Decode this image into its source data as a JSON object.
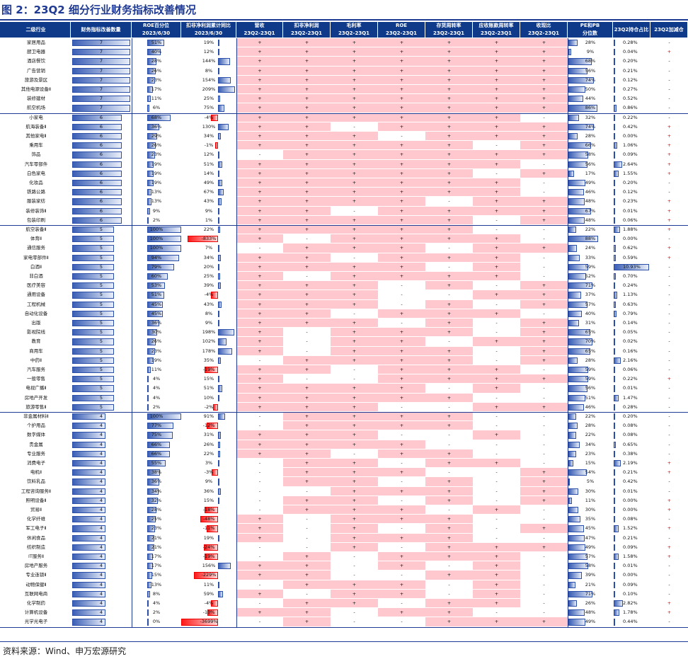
{
  "title": "图 2：23Q2 细分行业财务指标改善情况",
  "footer": "资料来源：Wind、申万宏源研究",
  "colors": {
    "header_bg": "#0f3a8a",
    "pink": "#ffc7ce",
    "bar_blue": "#3b5fb5",
    "bar_red": "#ff1a1a"
  },
  "headers": [
    {
      "line1": "二级行业",
      "line2": ""
    },
    {
      "line1": "财务指标改善数量",
      "line2": ""
    },
    {
      "line1": "ROE百分位",
      "line2": "2023/6/30"
    },
    {
      "line1": "扣非净利润累计同比",
      "line2": "2023/6/30"
    },
    {
      "line1": "营收",
      "line2": "23Q2-23Q1"
    },
    {
      "line1": "扣非净利润",
      "line2": "23Q2-23Q1"
    },
    {
      "line1": "毛利率",
      "line2": "23Q2-23Q1"
    },
    {
      "line1": "ROE",
      "line2": "23Q2-23Q1"
    },
    {
      "line1": "存货周转率",
      "line2": "23Q2-23Q1"
    },
    {
      "line1": "应收账款周转率",
      "line2": "23Q2-23Q1"
    },
    {
      "line1": "收现比",
      "line2": "23Q2-23Q1"
    },
    {
      "line1": "PE和PB",
      "line2": "分位数"
    },
    {
      "line1": "23Q2持仓占比",
      "line2": ""
    },
    {
      "line1": "23Q2加减仓",
      "line2": ""
    }
  ],
  "rows": [
    {
      "name": "家居用品",
      "n": 7,
      "roe": "51%",
      "roe_v": 0.51,
      "profit": "19%",
      "profit_v": 19,
      "ind": "+++++++",
      "pe": "28%",
      "pe_v": 0.28,
      "hold": "0.28%",
      "hold_v": 0.28,
      "chg": "-"
    },
    {
      "name": "厨卫电器",
      "n": 7,
      "roe": "40%",
      "roe_v": 0.4,
      "profit": "12%",
      "profit_v": 12,
      "ind": "+++++++",
      "pe": "9%",
      "pe_v": 0.09,
      "hold": "0.04%",
      "hold_v": 0.04,
      "chg": "+"
    },
    {
      "name": "酒店餐饮",
      "n": 7,
      "roe": "28%",
      "roe_v": 0.28,
      "profit": "144%",
      "profit_v": 144,
      "ind": "+++++++",
      "pe": "68%",
      "pe_v": 0.68,
      "hold": "0.20%",
      "hold_v": 0.2,
      "chg": "-"
    },
    {
      "name": "广告营销",
      "n": 7,
      "roe": "26%",
      "roe_v": 0.26,
      "profit": "8%",
      "profit_v": 8,
      "ind": "+++++++",
      "pe": "56%",
      "pe_v": 0.56,
      "hold": "0.21%",
      "hold_v": 0.21,
      "chg": "-"
    },
    {
      "name": "旅游及景区",
      "n": 7,
      "roe": "23%",
      "roe_v": 0.23,
      "profit": "154%",
      "profit_v": 154,
      "ind": "+++++++",
      "pe": "74%",
      "pe_v": 0.74,
      "hold": "0.12%",
      "hold_v": 0.12,
      "chg": "-"
    },
    {
      "name": "其他电源设备Ⅱ",
      "n": 7,
      "roe": "17%",
      "roe_v": 0.17,
      "profit": "209%",
      "profit_v": 209,
      "ind": "+++++++",
      "pe": "50%",
      "pe_v": 0.5,
      "hold": "0.27%",
      "hold_v": 0.27,
      "chg": "-"
    },
    {
      "name": "装修建材",
      "n": 7,
      "roe": "11%",
      "roe_v": 0.11,
      "profit": "25%",
      "profit_v": 25,
      "ind": "+++++++",
      "pe": "44%",
      "pe_v": 0.44,
      "hold": "0.52%",
      "hold_v": 0.52,
      "chg": "-"
    },
    {
      "name": "航空机场",
      "n": 7,
      "roe": "6%",
      "roe_v": 0.06,
      "profit": "75%",
      "profit_v": 75,
      "ind": "+++++++",
      "pe": "86%",
      "pe_v": 0.86,
      "hold": "0.86%",
      "hold_v": 0.86,
      "chg": "-"
    },
    {
      "name": "小家电",
      "n": 6,
      "roe": "68%",
      "roe_v": 0.68,
      "profit": "-4%",
      "profit_v": -4,
      "ind": "++++++-",
      "pe": "32%",
      "pe_v": 0.32,
      "hold": "0.22%",
      "hold_v": 0.22,
      "chg": "-"
    },
    {
      "name": "航海装备Ⅱ",
      "n": 6,
      "roe": "36%",
      "roe_v": 0.36,
      "profit": "130%",
      "profit_v": 130,
      "ind": "++-++++",
      "pe": "74%",
      "pe_v": 0.74,
      "hold": "0.42%",
      "hold_v": 0.42,
      "chg": "+"
    },
    {
      "name": "其他家电Ⅱ",
      "n": 6,
      "roe": "29%",
      "roe_v": 0.29,
      "profit": "34%",
      "profit_v": 34,
      "ind": "+++-+++",
      "pe": "28%",
      "pe_v": 0.28,
      "hold": "0.00%",
      "hold_v": 0.0,
      "chg": "+"
    },
    {
      "name": "乘用车",
      "n": 6,
      "roe": "26%",
      "roe_v": 0.26,
      "profit": "-1%",
      "profit_v": -1,
      "ind": "+++++-+",
      "pe": "66%",
      "pe_v": 0.66,
      "hold": "1.06%",
      "hold_v": 1.06,
      "chg": "+"
    },
    {
      "name": "饰品",
      "n": 6,
      "roe": "23%",
      "roe_v": 0.23,
      "profit": "12%",
      "profit_v": 12,
      "ind": "-++++++",
      "pe": "58%",
      "pe_v": 0.58,
      "hold": "0.09%",
      "hold_v": 0.09,
      "chg": "+"
    },
    {
      "name": "汽车零部件",
      "n": 6,
      "roe": "19%",
      "roe_v": 0.19,
      "profit": "51%",
      "profit_v": 51,
      "ind": "++++++-",
      "pe": "56%",
      "pe_v": 0.56,
      "hold": "2.64%",
      "hold_v": 2.64,
      "chg": "+"
    },
    {
      "name": "白色家电",
      "n": 6,
      "roe": "19%",
      "roe_v": 0.19,
      "profit": "14%",
      "profit_v": 14,
      "ind": "+++++-+",
      "pe": "17%",
      "pe_v": 0.17,
      "hold": "1.55%",
      "hold_v": 1.55,
      "chg": "+"
    },
    {
      "name": "化妆品",
      "n": 6,
      "roe": "19%",
      "roe_v": 0.19,
      "profit": "49%",
      "profit_v": 49,
      "ind": "++++++-",
      "pe": "49%",
      "pe_v": 0.49,
      "hold": "0.20%",
      "hold_v": 0.2,
      "chg": "-"
    },
    {
      "name": "铁路公路",
      "n": 6,
      "roe": "13%",
      "roe_v": 0.13,
      "profit": "67%",
      "profit_v": 67,
      "ind": "++++++-",
      "pe": "46%",
      "pe_v": 0.46,
      "hold": "0.12%",
      "hold_v": 0.12,
      "chg": "-"
    },
    {
      "name": "服装家纺",
      "n": 6,
      "roe": "13%",
      "roe_v": 0.13,
      "profit": "43%",
      "profit_v": 43,
      "ind": "++++-++",
      "pe": "48%",
      "pe_v": 0.48,
      "hold": "0.23%",
      "hold_v": 0.23,
      "chg": "+"
    },
    {
      "name": "装修装饰Ⅱ",
      "n": 6,
      "roe": "9%",
      "roe_v": 0.09,
      "profit": "9%",
      "profit_v": 9,
      "ind": "++-++++",
      "pe": "67%",
      "pe_v": 0.67,
      "hold": "0.01%",
      "hold_v": 0.01,
      "chg": "+"
    },
    {
      "name": "包装印刷",
      "n": 6,
      "roe": "2%",
      "roe_v": 0.02,
      "profit": "1%",
      "profit_v": 1,
      "ind": "+++++-+",
      "pe": "48%",
      "pe_v": 0.48,
      "hold": "0.06%",
      "hold_v": 0.06,
      "chg": "+"
    },
    {
      "name": "航空装备Ⅱ",
      "n": 5,
      "roe": "100%",
      "roe_v": 1.0,
      "profit": "22%",
      "profit_v": 22,
      "ind": "+++++--",
      "pe": "22%",
      "pe_v": 0.22,
      "hold": "1.88%",
      "hold_v": 1.88,
      "chg": "+"
    },
    {
      "name": "体育Ⅱ",
      "n": 5,
      "roe": "100%",
      "roe_v": 1.0,
      "profit": "-833%",
      "profit_v": -833,
      "ind": "+-++++-",
      "pe": "88%",
      "pe_v": 0.88,
      "hold": "0.00%",
      "hold_v": 0.0,
      "chg": "-"
    },
    {
      "name": "通信服务",
      "n": 5,
      "roe": "100%",
      "roe_v": 1.0,
      "profit": "7%",
      "profit_v": 7,
      "ind": "-+++-++",
      "pe": "24%",
      "pe_v": 0.24,
      "hold": "0.62%",
      "hold_v": 0.62,
      "chg": "+"
    },
    {
      "name": "家电零部件Ⅱ",
      "n": 5,
      "roe": "94%",
      "roe_v": 0.94,
      "profit": "34%",
      "profit_v": 34,
      "ind": "++-+++-",
      "pe": "33%",
      "pe_v": 0.33,
      "hold": "0.59%",
      "hold_v": 0.59,
      "chg": "+"
    },
    {
      "name": "白酒Ⅱ",
      "n": 5,
      "roe": "79%",
      "roe_v": 0.79,
      "profit": "20%",
      "profit_v": 20,
      "ind": "++++-+-",
      "pe": "59%",
      "pe_v": 0.59,
      "hold": "10.93%",
      "hold_v": 10.93,
      "chg": "-"
    },
    {
      "name": "非白酒",
      "n": 5,
      "roe": "60%",
      "roe_v": 0.6,
      "profit": "25%",
      "profit_v": 25,
      "ind": "+-++++-",
      "pe": "52%",
      "pe_v": 0.52,
      "hold": "0.70%",
      "hold_v": 0.7,
      "chg": "-"
    },
    {
      "name": "医疗美容",
      "n": 5,
      "roe": "53%",
      "roe_v": 0.53,
      "profit": "39%",
      "profit_v": 39,
      "ind": "+++-+-+",
      "pe": "71%",
      "pe_v": 0.71,
      "hold": "0.24%",
      "hold_v": 0.24,
      "chg": "-"
    },
    {
      "name": "通用设备",
      "n": 5,
      "roe": "51%",
      "roe_v": 0.51,
      "profit": "-4%",
      "profit_v": -4,
      "ind": "+++--++",
      "pe": "37%",
      "pe_v": 0.37,
      "hold": "1.13%",
      "hold_v": 1.13,
      "chg": "-"
    },
    {
      "name": "工程机械",
      "n": 5,
      "roe": "45%",
      "roe_v": 0.45,
      "profit": "43%",
      "profit_v": 43,
      "ind": "+++-+-+",
      "pe": "57%",
      "pe_v": 0.57,
      "hold": "0.63%",
      "hold_v": 0.63,
      "chg": "-"
    },
    {
      "name": "自动化设备",
      "n": 5,
      "roe": "45%",
      "roe_v": 0.45,
      "profit": "8%",
      "profit_v": 8,
      "ind": "++-+++-",
      "pe": "40%",
      "pe_v": 0.4,
      "hold": "0.79%",
      "hold_v": 0.79,
      "chg": "-"
    },
    {
      "name": "出版",
      "n": 5,
      "roe": "36%",
      "roe_v": 0.36,
      "profit": "9%",
      "profit_v": 9,
      "ind": "+++-+-+",
      "pe": "31%",
      "pe_v": 0.31,
      "hold": "0.14%",
      "hold_v": 0.14,
      "chg": "-"
    },
    {
      "name": "影视院线",
      "n": 5,
      "roe": "30%",
      "roe_v": 0.3,
      "profit": "198%",
      "profit_v": 198,
      "ind": "+-+++-+",
      "pe": "65%",
      "pe_v": 0.65,
      "hold": "0.05%",
      "hold_v": 0.05,
      "chg": "-"
    },
    {
      "name": "教育",
      "n": 5,
      "roe": "26%",
      "roe_v": 0.26,
      "profit": "102%",
      "profit_v": 102,
      "ind": "+-++-++",
      "pe": "70%",
      "pe_v": 0.7,
      "hold": "0.02%",
      "hold_v": 0.02,
      "chg": "-"
    },
    {
      "name": "商用车",
      "n": 5,
      "roe": "23%",
      "roe_v": 0.23,
      "profit": "178%",
      "profit_v": 178,
      "ind": "+-+++-+",
      "pe": "65%",
      "pe_v": 0.65,
      "hold": "0.16%",
      "hold_v": 0.16,
      "chg": "-"
    },
    {
      "name": "中药Ⅱ",
      "n": 5,
      "roe": "19%",
      "roe_v": 0.19,
      "profit": "35%",
      "profit_v": 35,
      "ind": "-++++-+",
      "pe": "28%",
      "pe_v": 0.28,
      "hold": "2.16%",
      "hold_v": 2.16,
      "chg": "-"
    },
    {
      "name": "汽车服务",
      "n": 5,
      "roe": "11%",
      "roe_v": 0.11,
      "profit": "-19%",
      "profit_v": -19,
      "ind": "++-+++-",
      "pe": "59%",
      "pe_v": 0.59,
      "hold": "0.06%",
      "hold_v": 0.06,
      "chg": "-"
    },
    {
      "name": "一般零售",
      "n": 5,
      "roe": "4%",
      "roe_v": 0.04,
      "profit": "15%",
      "profit_v": 15,
      "ind": "+--++++",
      "pe": "59%",
      "pe_v": 0.59,
      "hold": "0.22%",
      "hold_v": 0.22,
      "chg": "+"
    },
    {
      "name": "电视广播Ⅱ",
      "n": 5,
      "roe": "4%",
      "roe_v": 0.04,
      "profit": "51%",
      "profit_v": 51,
      "ind": "++++-+-",
      "pe": "56%",
      "pe_v": 0.56,
      "hold": "0.01%",
      "hold_v": 0.01,
      "chg": "-"
    },
    {
      "name": "房地产开发",
      "n": 5,
      "roe": "4%",
      "roe_v": 0.04,
      "profit": "10%",
      "profit_v": 10,
      "ind": "+++++--",
      "pe": "51%",
      "pe_v": 0.51,
      "hold": "1.47%",
      "hold_v": 1.47,
      "chg": "-"
    },
    {
      "name": "旅游零售Ⅱ",
      "n": 5,
      "roe": "2%",
      "roe_v": 0.02,
      "profit": "-2%",
      "profit_v": -2,
      "ind": "+++--++",
      "pe": "46%",
      "pe_v": 0.46,
      "hold": "0.28%",
      "hold_v": 0.28,
      "chg": "-"
    },
    {
      "name": "非金属材料Ⅱ",
      "n": 4,
      "roe": "100%",
      "roe_v": 1.0,
      "profit": "91%",
      "profit_v": 91,
      "ind": "-++++--",
      "pe": "22%",
      "pe_v": 0.22,
      "hold": "0.20%",
      "hold_v": 0.2,
      "chg": "-"
    },
    {
      "name": "个护用品",
      "n": 4,
      "roe": "77%",
      "roe_v": 0.77,
      "profit": "-12%",
      "profit_v": -12,
      "ind": "-++++--",
      "pe": "28%",
      "pe_v": 0.28,
      "hold": "0.08%",
      "hold_v": 0.08,
      "chg": "-"
    },
    {
      "name": "数字媒体",
      "n": 4,
      "roe": "75%",
      "roe_v": 0.75,
      "profit": "31%",
      "profit_v": 31,
      "ind": "+++--+-",
      "pe": "22%",
      "pe_v": 0.22,
      "hold": "0.08%",
      "hold_v": 0.08,
      "chg": "-"
    },
    {
      "name": "贵金属",
      "n": 4,
      "roe": "66%",
      "roe_v": 0.66,
      "profit": "26%",
      "profit_v": 26,
      "ind": "++++---",
      "pe": "34%",
      "pe_v": 0.34,
      "hold": "0.65%",
      "hold_v": 0.65,
      "chg": "-"
    },
    {
      "name": "专业服务",
      "n": 4,
      "roe": "66%",
      "roe_v": 0.66,
      "profit": "22%",
      "profit_v": 22,
      "ind": "++-++--",
      "pe": "23%",
      "pe_v": 0.23,
      "hold": "0.38%",
      "hold_v": 0.38,
      "chg": "-"
    },
    {
      "name": "消费电子",
      "n": 4,
      "roe": "55%",
      "roe_v": 0.55,
      "profit": "3%",
      "profit_v": 3,
      "ind": "-++-++-",
      "pe": "15%",
      "pe_v": 0.15,
      "hold": "2.19%",
      "hold_v": 2.19,
      "chg": "+"
    },
    {
      "name": "电机Ⅱ",
      "n": 4,
      "roe": "38%",
      "roe_v": 0.38,
      "profit": "-3%",
      "profit_v": -3,
      "ind": "-+++--+",
      "pe": "54%",
      "pe_v": 0.54,
      "hold": "0.21%",
      "hold_v": 0.21,
      "chg": "+"
    },
    {
      "name": "饮料乳品",
      "n": 4,
      "roe": "36%",
      "roe_v": 0.36,
      "profit": "9%",
      "profit_v": 9,
      "ind": "-++-+-+",
      "pe": "5%",
      "pe_v": 0.05,
      "hold": "0.42%",
      "hold_v": 0.42,
      "chg": "-"
    },
    {
      "name": "工程咨询服务Ⅱ",
      "n": 4,
      "roe": "34%",
      "roe_v": 0.34,
      "profit": "36%",
      "profit_v": 36,
      "ind": "--+++-+",
      "pe": "30%",
      "pe_v": 0.3,
      "hold": "0.01%",
      "hold_v": 0.01,
      "chg": "-"
    },
    {
      "name": "照明设备Ⅱ",
      "n": 4,
      "roe": "32%",
      "roe_v": 0.32,
      "profit": "15%",
      "profit_v": 15,
      "ind": "-++-+-+",
      "pe": "11%",
      "pe_v": 0.11,
      "hold": "0.00%",
      "hold_v": 0.0,
      "chg": "+"
    },
    {
      "name": "贸易Ⅱ",
      "n": 4,
      "roe": "28%",
      "roe_v": 0.28,
      "profit": "-18%",
      "profit_v": -18,
      "ind": "-+++-+-",
      "pe": "30%",
      "pe_v": 0.3,
      "hold": "0.00%",
      "hold_v": 0.0,
      "chg": "+"
    },
    {
      "name": "化学纤维",
      "n": 4,
      "roe": "25%",
      "roe_v": 0.25,
      "profit": "-48%",
      "profit_v": -48,
      "ind": "+-+++--",
      "pe": "35%",
      "pe_v": 0.35,
      "hold": "0.08%",
      "hold_v": 0.08,
      "chg": "-"
    },
    {
      "name": "军工电子Ⅱ",
      "n": 4,
      "roe": "23%",
      "roe_v": 0.23,
      "profit": "-11%",
      "profit_v": -11,
      "ind": "+-+-+-+",
      "pe": "45%",
      "pe_v": 0.45,
      "hold": "1.52%",
      "hold_v": 1.52,
      "chg": "+"
    },
    {
      "name": "休闲食品",
      "n": 4,
      "roe": "21%",
      "roe_v": 0.21,
      "profit": "19%",
      "profit_v": 19,
      "ind": "+-+++--",
      "pe": "47%",
      "pe_v": 0.47,
      "hold": "0.21%",
      "hold_v": 0.21,
      "chg": "-"
    },
    {
      "name": "纺织制造",
      "n": 4,
      "roe": "21%",
      "roe_v": 0.21,
      "profit": "-24%",
      "profit_v": -24,
      "ind": "--+-+++",
      "pe": "49%",
      "pe_v": 0.49,
      "hold": "0.09%",
      "hold_v": 0.09,
      "chg": "+"
    },
    {
      "name": "IT服务Ⅱ",
      "n": 4,
      "roe": "17%",
      "roe_v": 0.17,
      "profit": "-19%",
      "profit_v": -19,
      "ind": "-+-+++-",
      "pe": "57%",
      "pe_v": 0.57,
      "hold": "1.58%",
      "hold_v": 1.58,
      "chg": "+"
    },
    {
      "name": "房地产服务",
      "n": 4,
      "roe": "17%",
      "roe_v": 0.17,
      "profit": "156%",
      "profit_v": 156,
      "ind": "++-+-+-",
      "pe": "58%",
      "pe_v": 0.58,
      "hold": "0.01%",
      "hold_v": 0.01,
      "chg": "-"
    },
    {
      "name": "专业连锁Ⅱ",
      "n": 4,
      "roe": "15%",
      "roe_v": 0.15,
      "profit": "-229%",
      "profit_v": -229,
      "ind": "++--++-",
      "pe": "39%",
      "pe_v": 0.39,
      "hold": "0.00%",
      "hold_v": 0.0,
      "chg": "-"
    },
    {
      "name": "动物保健Ⅱ",
      "n": 4,
      "roe": "13%",
      "roe_v": 0.13,
      "profit": "11%",
      "profit_v": 11,
      "ind": "-+++-+-",
      "pe": "21%",
      "pe_v": 0.21,
      "hold": "0.09%",
      "hold_v": 0.09,
      "chg": "-"
    },
    {
      "name": "互联网电商",
      "n": 4,
      "roe": "8%",
      "roe_v": 0.08,
      "profit": "59%",
      "profit_v": 59,
      "ind": "+-++-+-",
      "pe": "71%",
      "pe_v": 0.71,
      "hold": "0.10%",
      "hold_v": 0.1,
      "chg": "-"
    },
    {
      "name": "化学制药",
      "n": 4,
      "roe": "4%",
      "roe_v": 0.04,
      "profit": "-4%",
      "profit_v": -4,
      "ind": "-++-++-",
      "pe": "26%",
      "pe_v": 0.26,
      "hold": "2.82%",
      "hold_v": 2.82,
      "chg": "+"
    },
    {
      "name": "计算机设备",
      "n": 4,
      "roe": "2%",
      "roe_v": 0.02,
      "profit": "-10%",
      "profit_v": -10,
      "ind": "++-++--",
      "pe": "48%",
      "pe_v": 0.48,
      "hold": "1.78%",
      "hold_v": 1.78,
      "chg": "+"
    },
    {
      "name": "光学光电子",
      "n": 4,
      "roe": "0%",
      "roe_v": 0.0,
      "profit": "-3699%",
      "profit_v": -3699,
      "ind": "-+--+++",
      "pe": "49%",
      "pe_v": 0.49,
      "hold": "0.44%",
      "hold_v": 0.44,
      "chg": "-"
    }
  ]
}
